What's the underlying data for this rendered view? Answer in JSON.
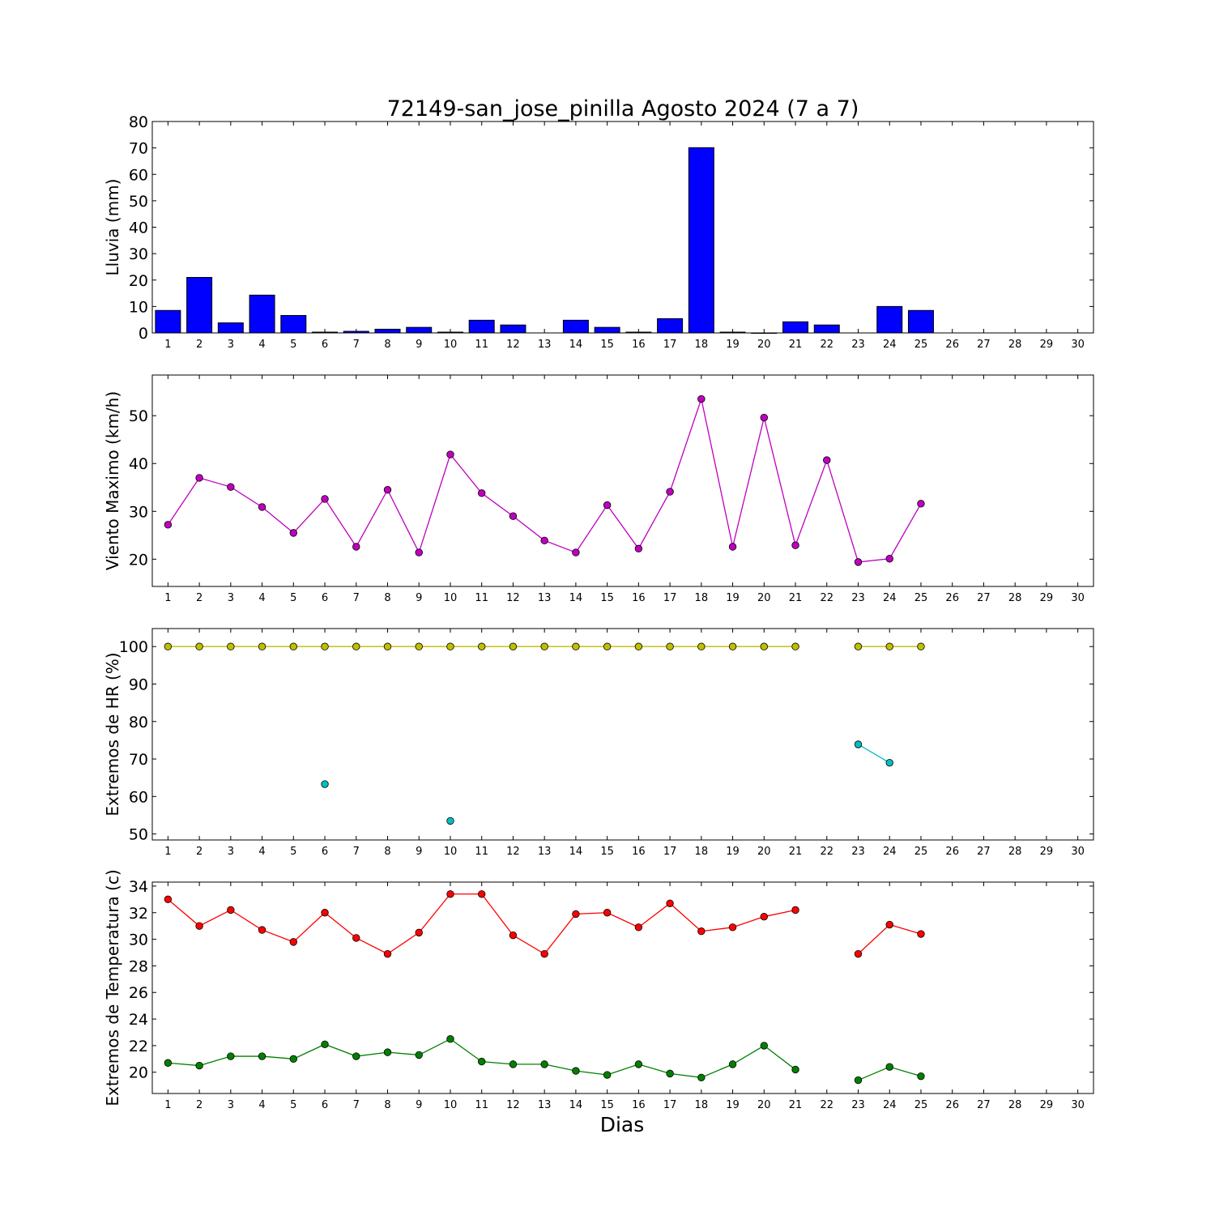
{
  "title": "72149-san_jose_pinilla Agosto 2024  (7 a 7)",
  "xlabel": "Dias",
  "days": [
    1,
    2,
    3,
    4,
    5,
    6,
    7,
    8,
    9,
    10,
    11,
    12,
    13,
    14,
    15,
    16,
    17,
    18,
    19,
    20,
    21,
    22,
    23,
    24,
    25,
    26,
    27,
    28,
    29,
    30
  ],
  "chart_data": [
    {
      "type": "bar",
      "ylabel": "Lluvia (mm)",
      "ylim": [
        0,
        80
      ],
      "yticks": [
        0,
        10,
        20,
        30,
        40,
        50,
        60,
        70,
        80
      ],
      "color": "#0000ff",
      "series": [
        {
          "values": [
            8.5,
            21,
            3.8,
            14.3,
            6.6,
            0.3,
            0.6,
            1.4,
            2.1,
            0.3,
            4.8,
            3,
            null,
            4.8,
            2.1,
            0.3,
            5.4,
            70.1,
            0.3,
            0,
            4.2,
            3,
            null,
            10,
            8.5,
            null,
            null,
            null,
            null,
            null
          ]
        }
      ]
    },
    {
      "type": "line",
      "ylabel": "Viento Maximo (km/h)",
      "ylim": [
        14.3,
        58.5
      ],
      "yticks": [
        20,
        30,
        40,
        50
      ],
      "series": [
        {
          "color": "#bf00bf",
          "values": [
            27.2,
            37,
            35.1,
            30.9,
            25.5,
            32.6,
            22.6,
            34.5,
            21.4,
            41.9,
            33.8,
            29,
            23.9,
            21.4,
            31.3,
            22.2,
            34.1,
            53.5,
            22.6,
            49.6,
            22.9,
            40.7,
            19.4,
            20.1,
            31.6,
            null,
            null,
            null,
            null,
            null
          ]
        }
      ]
    },
    {
      "type": "line",
      "ylabel": "Extremos de HR (%)",
      "ylim": [
        48.4,
        104.8
      ],
      "yticks": [
        50,
        60,
        70,
        80,
        90,
        100
      ],
      "series": [
        {
          "color": "#bfbf00",
          "values": [
            100,
            100,
            100,
            100,
            100,
            100,
            100,
            100,
            100,
            100,
            100,
            100,
            100,
            100,
            100,
            100,
            100,
            100,
            100,
            100,
            100,
            null,
            100,
            100,
            100,
            null,
            null,
            null,
            null,
            null
          ]
        },
        {
          "color": "#00bfbf",
          "values": [
            null,
            null,
            null,
            null,
            null,
            63.3,
            null,
            null,
            null,
            53.5,
            null,
            null,
            null,
            null,
            null,
            null,
            null,
            null,
            null,
            null,
            null,
            null,
            73.9,
            69,
            null,
            null,
            null,
            null,
            null,
            null
          ]
        }
      ]
    },
    {
      "type": "line",
      "ylabel": "Extremos de Temperatura (c)",
      "ylim": [
        18.4,
        34.3
      ],
      "yticks": [
        20,
        22,
        24,
        26,
        28,
        30,
        32,
        34
      ],
      "series": [
        {
          "color": "#ff0000",
          "values": [
            33,
            31,
            32.2,
            30.7,
            29.8,
            32,
            30.1,
            28.9,
            30.5,
            33.4,
            33.4,
            30.3,
            28.9,
            31.9,
            32,
            30.9,
            32.7,
            30.6,
            30.9,
            31.7,
            32.2,
            null,
            28.9,
            31.1,
            30.4,
            null,
            null,
            null,
            null,
            null
          ]
        },
        {
          "color": "#008000",
          "values": [
            20.7,
            20.5,
            21.2,
            21.2,
            21,
            22.1,
            21.2,
            21.5,
            21.3,
            22.5,
            20.8,
            20.6,
            20.6,
            20.1,
            19.8,
            20.6,
            19.9,
            19.6,
            20.6,
            22,
            20.2,
            null,
            19.4,
            20.4,
            19.7,
            null,
            null,
            null,
            null,
            null
          ]
        }
      ]
    }
  ]
}
